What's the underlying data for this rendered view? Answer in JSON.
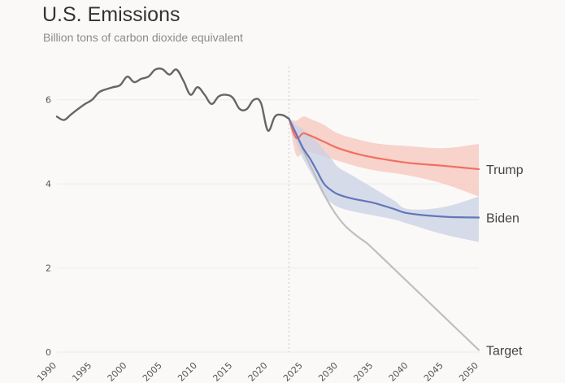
{
  "chart_data": {
    "type": "line",
    "title": "U.S. Emissions",
    "subtitle": "Billion tons of carbon dioxide equivalent",
    "xlabel": "",
    "ylabel": "",
    "xlim": [
      1990,
      2050
    ],
    "ylim": [
      0,
      7
    ],
    "y_ticks": [
      0,
      2,
      4,
      6
    ],
    "x_ticks": [
      1990,
      1995,
      2000,
      2005,
      2010,
      2015,
      2020,
      2025,
      2030,
      2035,
      2040,
      2045,
      2050
    ],
    "grid": "horizontal",
    "projection_start": 2023,
    "colors": {
      "historical": "#666666",
      "trump": "#f07060",
      "trump_band": "#f6c6bc",
      "biden": "#6177b8",
      "biden_band": "#c9d0e5",
      "target": "#bfbfbf"
    },
    "historical": {
      "x": [
        1990,
        1991,
        1992,
        1993,
        1994,
        1995,
        1996,
        1997,
        1998,
        1999,
        2000,
        2001,
        2002,
        2003,
        2004,
        2005,
        2006,
        2007,
        2008,
        2009,
        2010,
        2011,
        2012,
        2013,
        2014,
        2015,
        2016,
        2017,
        2018,
        2019,
        2020,
        2021,
        2022,
        2023
      ],
      "y": [
        5.6,
        5.52,
        5.65,
        5.78,
        5.9,
        6.0,
        6.18,
        6.25,
        6.3,
        6.35,
        6.55,
        6.42,
        6.5,
        6.55,
        6.72,
        6.73,
        6.6,
        6.72,
        6.45,
        6.12,
        6.3,
        6.12,
        5.9,
        6.08,
        6.12,
        6.05,
        5.78,
        5.78,
        6.0,
        5.93,
        5.27,
        5.6,
        5.64,
        5.55
      ]
    },
    "series": [
      {
        "name": "Trump",
        "x": [
          2023,
          2024,
          2025,
          2026,
          2028,
          2030,
          2033,
          2036,
          2040,
          2045,
          2050
        ],
        "y": [
          5.55,
          5.1,
          5.2,
          5.15,
          5.0,
          4.85,
          4.7,
          4.6,
          4.5,
          4.43,
          4.35
        ],
        "band_upper": [
          5.55,
          5.5,
          5.6,
          5.55,
          5.4,
          5.2,
          5.05,
          4.95,
          4.9,
          4.85,
          4.95
        ],
        "band_lower": [
          5.55,
          4.7,
          4.75,
          4.75,
          4.65,
          4.55,
          4.4,
          4.3,
          4.2,
          4.0,
          3.7
        ]
      },
      {
        "name": "Biden",
        "x": [
          2023,
          2024,
          2025,
          2026,
          2027,
          2028,
          2029,
          2030,
          2032,
          2035,
          2038,
          2040,
          2045,
          2050
        ],
        "y": [
          5.55,
          5.2,
          4.85,
          4.6,
          4.3,
          4.0,
          3.85,
          3.75,
          3.65,
          3.55,
          3.4,
          3.3,
          3.22,
          3.2
        ],
        "band_upper": [
          5.55,
          5.4,
          5.3,
          5.15,
          5.0,
          4.8,
          4.6,
          4.4,
          4.2,
          3.9,
          3.6,
          3.4,
          3.45,
          3.7
        ],
        "band_lower": [
          5.55,
          5.0,
          4.6,
          4.3,
          4.0,
          3.7,
          3.55,
          3.45,
          3.35,
          3.25,
          3.15,
          3.05,
          2.8,
          2.62
        ]
      },
      {
        "name": "Target",
        "x": [
          2023,
          2024,
          2025,
          2026,
          2027,
          2028,
          2029,
          2030,
          2031,
          2032,
          2033,
          2034,
          2035,
          2040,
          2045,
          2050
        ],
        "y": [
          5.55,
          5.2,
          4.8,
          4.45,
          4.1,
          3.75,
          3.45,
          3.2,
          3.0,
          2.85,
          2.72,
          2.6,
          2.45,
          1.65,
          0.85,
          0.05
        ]
      }
    ]
  }
}
